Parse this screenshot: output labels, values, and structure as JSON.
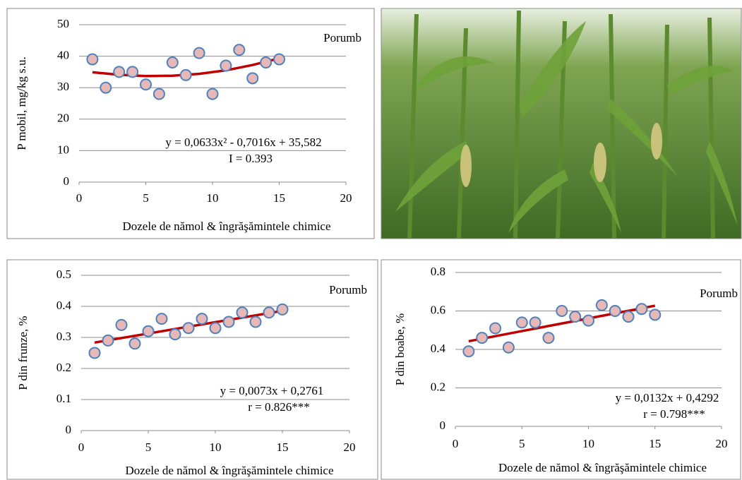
{
  "chart_data": [
    {
      "type": "scatter",
      "y_label": "P mobil, mg/kg s.u.",
      "x_label": "Dozele de nămol & îngrăşămintele chimice",
      "annotation": "Porumb",
      "equation": "y = 0,0633x² - 0,7016x + 35,582",
      "statistic": "I = 0.393",
      "x": [
        1,
        2,
        3,
        4,
        5,
        6,
        7,
        8,
        9,
        10,
        11,
        12,
        13,
        14,
        15
      ],
      "values": [
        39,
        30,
        35,
        35,
        31,
        28,
        38,
        34,
        41,
        28,
        37,
        42,
        33,
        38,
        39
      ],
      "color": "#e6b9b8",
      "edge_color": "#4f81bd",
      "trendline": {
        "x": [
          1,
          3,
          5,
          7,
          9,
          11,
          13,
          15
        ],
        "values": [
          34.9,
          34.1,
          33.7,
          33.8,
          34.4,
          35.5,
          37.2,
          39.3
        ],
        "color": "#c00000"
      },
      "xlim": [
        0,
        20
      ],
      "xticks": [
        0,
        5,
        10,
        15,
        20
      ],
      "ylim": [
        0,
        50
      ],
      "yticks": [
        0,
        10,
        20,
        30,
        40,
        50
      ],
      "grid": true
    },
    {
      "type": "scatter",
      "y_label": "P din frunze, %",
      "x_label": "Dozele de nămol & îngrăşămintele chimice",
      "annotation": "Porumb",
      "equation": "y = 0,0073x + 0,2761",
      "statistic": "r = 0.826***",
      "x": [
        1,
        2,
        3,
        4,
        5,
        6,
        7,
        8,
        9,
        10,
        11,
        12,
        13,
        14,
        15
      ],
      "values": [
        0.25,
        0.29,
        0.34,
        0.28,
        0.32,
        0.36,
        0.31,
        0.33,
        0.36,
        0.33,
        0.35,
        0.38,
        0.35,
        0.38,
        0.39
      ],
      "color": "#e6b9b8",
      "edge_color": "#4f81bd",
      "trendline": {
        "x": [
          1,
          15
        ],
        "values": [
          0.2834,
          0.3856
        ],
        "color": "#c00000"
      },
      "xlim": [
        0,
        20
      ],
      "xticks": [
        0,
        5,
        10,
        15,
        20
      ],
      "ylim": [
        0,
        0.5
      ],
      "yticks": [
        0,
        0.1,
        0.2,
        0.3,
        0.4,
        0.5
      ],
      "grid": true
    },
    {
      "type": "scatter",
      "y_label": "P din boabe, %",
      "x_label": "Dozele de nămol & îngrăşămintele chimice",
      "annotation": "Porumb",
      "equation": "y = 0,0132x + 0,4292",
      "statistic": "r = 0.798***",
      "x": [
        1,
        2,
        3,
        4,
        5,
        6,
        7,
        8,
        9,
        10,
        11,
        12,
        13,
        14,
        15
      ],
      "values": [
        0.39,
        0.46,
        0.51,
        0.41,
        0.54,
        0.54,
        0.46,
        0.6,
        0.57,
        0.55,
        0.63,
        0.6,
        0.57,
        0.61,
        0.58
      ],
      "color": "#e6b9b8",
      "edge_color": "#4f81bd",
      "trendline": {
        "x": [
          1,
          15
        ],
        "values": [
          0.4424,
          0.6272
        ],
        "color": "#c00000"
      },
      "xlim": [
        0,
        20
      ],
      "xticks": [
        0,
        5,
        10,
        15,
        20
      ],
      "ylim": [
        0,
        0.8
      ],
      "yticks": [
        0,
        0.2,
        0.4,
        0.6,
        0.8
      ],
      "grid": true
    }
  ]
}
